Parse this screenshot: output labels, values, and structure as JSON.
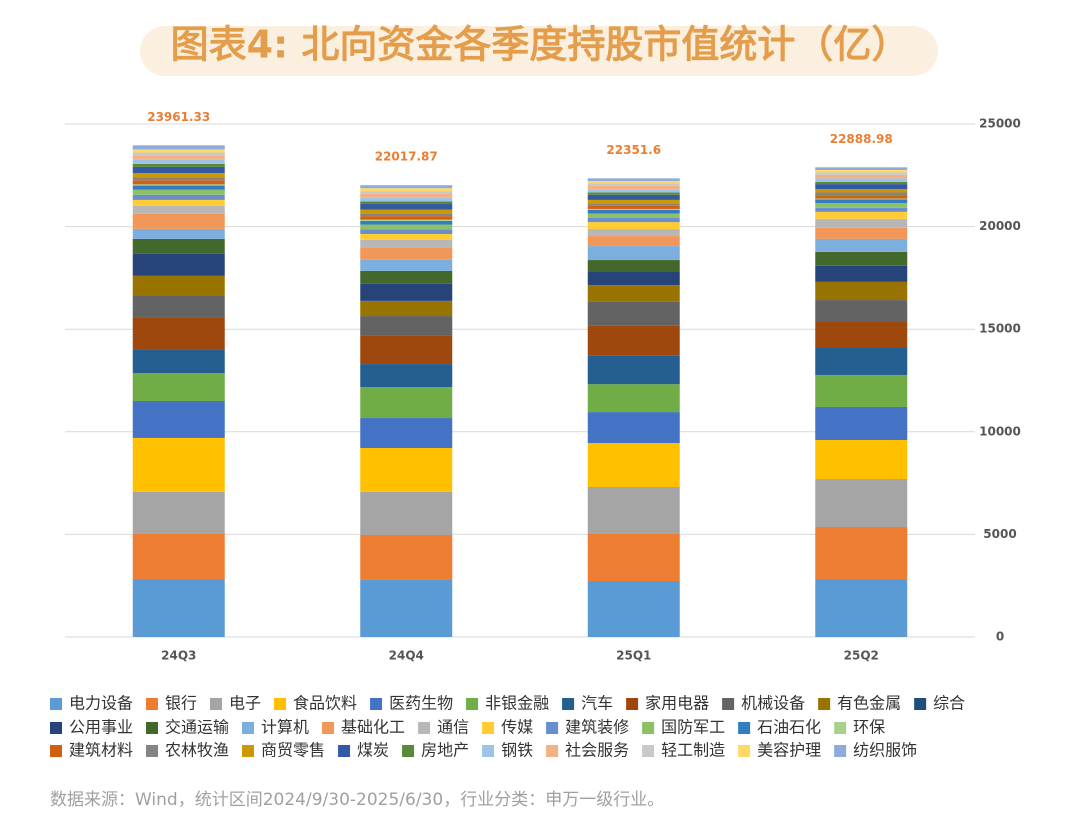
{
  "chart_data": {
    "type": "stacked_bar",
    "title": "图表4: 北向资金各季度持股市值统计（亿）",
    "note": "数据来源：Wind，统计区间2024/9/30-2025/6/30，行业分类：申万一级行业。",
    "categories": [
      "24Q3",
      "24Q4",
      "25Q1",
      "25Q2"
    ],
    "totals": [
      23961.33,
      22017.87,
      22351.6,
      22888.98
    ],
    "ylim": [
      0,
      25000
    ],
    "yticks": [
      0,
      5000,
      10000,
      15000,
      20000,
      25000
    ],
    "grid": true,
    "series": [
      {
        "name": "电力设备",
        "color": "#5b9bd5",
        "values": [
          2830,
          2780,
          2730,
          2830
        ]
      },
      {
        "name": "银行",
        "color": "#ed7d31",
        "values": [
          2190,
          2190,
          2290,
          2530
        ]
      },
      {
        "name": "电子",
        "color": "#a5a5a5",
        "values": [
          2050,
          2100,
          2290,
          2340
        ]
      },
      {
        "name": "食品饮料",
        "color": "#ffc000",
        "values": [
          2630,
          2140,
          2140,
          1900
        ]
      },
      {
        "name": "医药生物",
        "color": "#4472c4",
        "values": [
          1800,
          1460,
          1510,
          1610
        ]
      },
      {
        "name": "非银金融",
        "color": "#70ad47",
        "values": [
          1360,
          1510,
          1360,
          1560
        ]
      },
      {
        "name": "汽车",
        "color": "#255e91",
        "values": [
          1170,
          1120,
          1410,
          1360
        ]
      },
      {
        "name": "家用电器",
        "color": "#9e480e",
        "values": [
          1560,
          1410,
          1460,
          1220
        ]
      },
      {
        "name": "机械设备",
        "color": "#636363",
        "values": [
          1070,
          930,
          1170,
          1070
        ]
      },
      {
        "name": "有色金属",
        "color": "#997300",
        "values": [
          930,
          730,
          780,
          880
        ]
      },
      {
        "name": "综合",
        "color": "#1f4e79",
        "values": [
          10,
          10,
          10,
          10
        ]
      },
      {
        "name": "公用事业",
        "color": "#264478",
        "values": [
          1070,
          830,
          680,
          780
        ]
      },
      {
        "name": "交通运输",
        "color": "#43682b",
        "values": [
          730,
          630,
          540,
          680
        ]
      },
      {
        "name": "计算机",
        "color": "#7cafdd",
        "values": [
          490,
          540,
          680,
          630
        ]
      },
      {
        "name": "基础化工",
        "color": "#f1975a",
        "values": [
          730,
          580,
          490,
          540
        ]
      },
      {
        "name": "通信",
        "color": "#b7b7b7",
        "values": [
          390,
          390,
          340,
          440
        ]
      },
      {
        "name": "传媒",
        "color": "#ffcd33",
        "values": [
          290,
          290,
          340,
          340
        ]
      },
      {
        "name": "建筑装修",
        "color": "#698ed0",
        "values": [
          250,
          230,
          200,
          200
        ]
      },
      {
        "name": "国防军工",
        "color": "#8cc168",
        "values": [
          250,
          230,
          220,
          230
        ]
      },
      {
        "name": "石油石化",
        "color": "#327dc2",
        "values": [
          200,
          180,
          170,
          170
        ]
      },
      {
        "name": "环保",
        "color": "#a9d18e",
        "values": [
          60,
          60,
          50,
          50
        ]
      },
      {
        "name": "建筑材料",
        "color": "#d26012",
        "values": [
          200,
          170,
          150,
          150
        ]
      },
      {
        "name": "农林牧渔",
        "color": "#848484",
        "values": [
          150,
          140,
          130,
          140
        ]
      },
      {
        "name": "商贸零售",
        "color": "#cc9a00",
        "values": [
          200,
          180,
          160,
          160
        ]
      },
      {
        "name": "煤炭",
        "color": "#335aa1",
        "values": [
          300,
          270,
          250,
          250
        ]
      },
      {
        "name": "房地产",
        "color": "#5a8a39",
        "values": [
          150,
          130,
          110,
          110
        ]
      },
      {
        "name": "钢铁",
        "color": "#9dc3e6",
        "values": [
          200,
          180,
          160,
          170
        ]
      },
      {
        "name": "社会服务",
        "color": "#f4b183",
        "values": [
          200,
          180,
          160,
          170
        ]
      },
      {
        "name": "轻工制造",
        "color": "#c9c9c9",
        "values": [
          150,
          140,
          120,
          120
        ]
      },
      {
        "name": "美容护理",
        "color": "#ffd966",
        "values": [
          150,
          140,
          120,
          120
        ]
      },
      {
        "name": "纺织服饰",
        "color": "#8faadc",
        "values": [
          201,
          148,
          132,
          129
        ]
      }
    ]
  }
}
